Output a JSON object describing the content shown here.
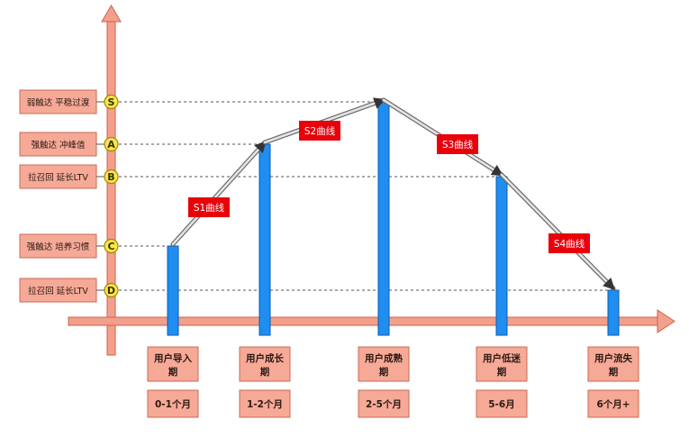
{
  "colors": {
    "axis": "#f2a08c",
    "axis_stroke": "#d0604a",
    "bar": "#1f8ef0",
    "bar_stroke": "#0b5cb0",
    "marker_fill": "#ffe44a",
    "marker_stroke": "#9a8a00",
    "tag_bg": "#e8000b",
    "box_bg": "#f6a996",
    "box_stroke": "#c86a56",
    "curve": "#9e9e9e"
  },
  "levels": [
    {
      "marker": "S",
      "label": "弱触达 平稳过渡"
    },
    {
      "marker": "A",
      "label": "强触达 冲峰值"
    },
    {
      "marker": "B",
      "label": "拉召回 延长LTV"
    },
    {
      "marker": "C",
      "label": "强触达 培养习惯"
    },
    {
      "marker": "D",
      "label": "拉召回 延长LTV"
    }
  ],
  "stages": [
    {
      "name_line1": "用户导入",
      "name_line2": "期",
      "period": "0-1个月",
      "level": "C"
    },
    {
      "name_line1": "用户成长",
      "name_line2": "期",
      "period": "1-2个月",
      "level": "A"
    },
    {
      "name_line1": "用户成熟",
      "name_line2": "期",
      "period": "2-5个月",
      "level": "S"
    },
    {
      "name_line1": "用户低迷",
      "name_line2": "期",
      "period": "5-6月",
      "level": "B"
    },
    {
      "name_line1": "用户流失",
      "name_line2": "期",
      "period": "6个月+",
      "level": "D"
    }
  ],
  "curves": [
    {
      "label": "S1曲线"
    },
    {
      "label": "S2曲线"
    },
    {
      "label": "S3曲线"
    },
    {
      "label": "S4曲线"
    }
  ]
}
